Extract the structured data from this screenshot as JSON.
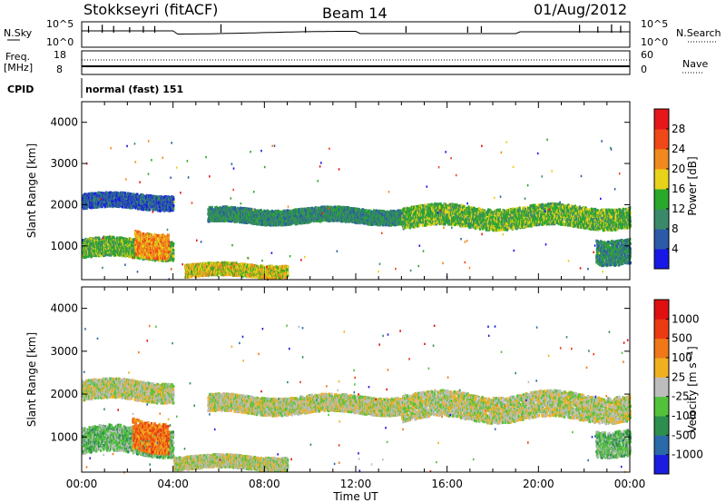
{
  "header": {
    "station": "Stokkseyri (fitACF)",
    "beam": "Beam 14",
    "date": "01/Aug/2012"
  },
  "panels": {
    "nsky": {
      "label": "N.Sky",
      "right_label": "N.Search",
      "yticks_left": [
        "10^5",
        "10^0"
      ],
      "yticks_right": [
        "10^5",
        "10^0"
      ]
    },
    "freq": {
      "label_line1": "Freq.",
      "label_line2": "[MHz]",
      "yticks_left": [
        "18",
        "8"
      ],
      "yticks_right": [
        "60",
        "0"
      ],
      "right_label": "Nave"
    },
    "cpid": {
      "label": "CPID",
      "value": "normal (fast) 151"
    }
  },
  "xaxis": {
    "label": "Time UT",
    "ticks": [
      "00:00",
      "04:00",
      "08:00",
      "12:00",
      "16:00",
      "20:00",
      "00:00"
    ]
  },
  "chart_data": [
    {
      "type": "heatmap",
      "title": "",
      "xlabel": "Time UT",
      "ylabel": "Slant Range [km]",
      "x_range_hours": [
        0,
        24
      ],
      "ylim": [
        180,
        4500
      ],
      "yticks": [
        1000,
        2000,
        3000,
        4000
      ],
      "colorbar": {
        "label": "Power [dB]",
        "ticks": [
          "4",
          "8",
          "12",
          "16",
          "20",
          "24",
          "28"
        ],
        "colors": [
          "#1818e6",
          "#2c5aa8",
          "#3a8a6a",
          "#2aa82a",
          "#e8d21a",
          "#f08a1e",
          "#f04818",
          "#e6161a"
        ]
      },
      "bands": [
        {
          "name": "main",
          "t": [
            0.0,
            4.0
          ],
          "range": [
            1900,
            2250
          ],
          "level": 1
        },
        {
          "name": "e-region",
          "t": [
            0.0,
            4.0
          ],
          "range": [
            700,
            1150
          ],
          "level": 3
        },
        {
          "name": "patch",
          "t": [
            2.3,
            3.8
          ],
          "range": [
            750,
            1350
          ],
          "level": 5
        },
        {
          "name": "low",
          "t": [
            4.5,
            9.0
          ],
          "range": [
            250,
            550
          ],
          "level": 4
        },
        {
          "name": "mid",
          "t": [
            5.5,
            14.0
          ],
          "range": [
            1550,
            1900
          ],
          "level": 2
        },
        {
          "name": "late",
          "t": [
            14.0,
            24.0
          ],
          "range": [
            1450,
            1950
          ],
          "level": 3
        },
        {
          "name": "end",
          "t": [
            22.5,
            24.0
          ],
          "range": [
            600,
            1200
          ],
          "level": 2
        }
      ]
    },
    {
      "type": "heatmap",
      "title": "",
      "xlabel": "Time UT",
      "ylabel": "Slant Range [km]",
      "x_range_hours": [
        0,
        24
      ],
      "ylim": [
        180,
        4500
      ],
      "yticks": [
        1000,
        2000,
        3000,
        4000
      ],
      "colorbar": {
        "label": "Velocity [m s-1]",
        "ticks": [
          "1000",
          "500",
          "100",
          "25",
          "-25",
          "-100",
          "-500",
          "-1000"
        ],
        "colors": [
          "#1c1ce0",
          "#2a6aa8",
          "#2d8f4e",
          "#52c23a",
          "#bdbdbd",
          "#f0b020",
          "#f07818",
          "#ec3a12",
          "#e01010"
        ]
      },
      "bands": [
        {
          "name": "main",
          "t": [
            0.0,
            4.0
          ],
          "range": [
            1850,
            2300
          ],
          "level": 4
        },
        {
          "name": "e-region",
          "t": [
            0.0,
            4.0
          ],
          "range": [
            600,
            1200
          ],
          "level": 3
        },
        {
          "name": "patch",
          "t": [
            2.2,
            3.8
          ],
          "range": [
            700,
            1400
          ],
          "level": 6
        },
        {
          "name": "low",
          "t": [
            4.0,
            9.0
          ],
          "range": [
            250,
            550
          ],
          "level": 4
        },
        {
          "name": "mid",
          "t": [
            5.5,
            14.0
          ],
          "range": [
            1550,
            1950
          ],
          "level": 4
        },
        {
          "name": "late",
          "t": [
            14.0,
            24.0
          ],
          "range": [
            1400,
            2000
          ],
          "level": 4
        },
        {
          "name": "end",
          "t": [
            22.5,
            24.0
          ],
          "range": [
            600,
            1200
          ],
          "level": 3
        }
      ]
    }
  ]
}
